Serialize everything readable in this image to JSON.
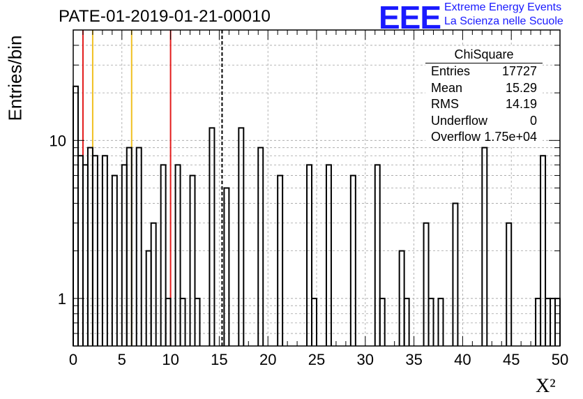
{
  "header": {
    "run_title": "PATE-01-2019-01-21-00010",
    "logo_text": "EEE",
    "org_line1": "Extreme Energy Events",
    "org_line2": "La Scienza nelle Scuole"
  },
  "stats_box": {
    "title": "ChiSquare",
    "rows": [
      {
        "label": "Entries",
        "value": "17727"
      },
      {
        "label": "Mean",
        "value": "15.29"
      },
      {
        "label": "RMS",
        "value": "14.19"
      },
      {
        "label": "Underflow",
        "value": "0"
      },
      {
        "label": "Overflow",
        "value": "1.75e+04"
      }
    ]
  },
  "chart_data": {
    "type": "histogram",
    "title": "PATE-01-2019-01-21-00010",
    "xlabel": "X²",
    "ylabel": "Entries/bin",
    "x_scale": "linear",
    "y_scale": "log",
    "xlim": [
      0,
      50
    ],
    "ylim": [
      0.5,
      50
    ],
    "grid": true,
    "bin_width": 0.5,
    "x_ticks": [
      0,
      5,
      10,
      15,
      20,
      25,
      30,
      35,
      40,
      45,
      50
    ],
    "x_tick_labels": [
      "0",
      "5",
      "10",
      "15",
      "20",
      "25",
      "30",
      "35",
      "40",
      "45",
      "50"
    ],
    "y_ticks": [
      1,
      10
    ],
    "y_tick_labels": [
      "1",
      "10"
    ],
    "bins": [
      {
        "x0": 0.0,
        "count": 22
      },
      {
        "x0": 0.5,
        "count": 8
      },
      {
        "x0": 1.0,
        "count": 7
      },
      {
        "x0": 1.5,
        "count": 9
      },
      {
        "x0": 2.0,
        "count": 8
      },
      {
        "x0": 3.0,
        "count": 8
      },
      {
        "x0": 4.0,
        "count": 6
      },
      {
        "x0": 5.0,
        "count": 7
      },
      {
        "x0": 5.5,
        "count": 9
      },
      {
        "x0": 6.5,
        "count": 9
      },
      {
        "x0": 7.5,
        "count": 2
      },
      {
        "x0": 8.0,
        "count": 3
      },
      {
        "x0": 9.0,
        "count": 7
      },
      {
        "x0": 9.5,
        "count": 1
      },
      {
        "x0": 10.5,
        "count": 7
      },
      {
        "x0": 11.0,
        "count": 1
      },
      {
        "x0": 12.0,
        "count": 6
      },
      {
        "x0": 12.5,
        "count": 1
      },
      {
        "x0": 14.0,
        "count": 12
      },
      {
        "x0": 15.5,
        "count": 5
      },
      {
        "x0": 17.0,
        "count": 12
      },
      {
        "x0": 19.0,
        "count": 9
      },
      {
        "x0": 21.0,
        "count": 6
      },
      {
        "x0": 24.0,
        "count": 7
      },
      {
        "x0": 24.5,
        "count": 1
      },
      {
        "x0": 26.0,
        "count": 7
      },
      {
        "x0": 28.5,
        "count": 6
      },
      {
        "x0": 31.0,
        "count": 7
      },
      {
        "x0": 31.5,
        "count": 1
      },
      {
        "x0": 33.5,
        "count": 2
      },
      {
        "x0": 34.0,
        "count": 1
      },
      {
        "x0": 36.0,
        "count": 3
      },
      {
        "x0": 36.5,
        "count": 1
      },
      {
        "x0": 37.5,
        "count": 1
      },
      {
        "x0": 39.0,
        "count": 4
      },
      {
        "x0": 42.0,
        "count": 9
      },
      {
        "x0": 44.5,
        "count": 3
      },
      {
        "x0": 47.5,
        "count": 1
      },
      {
        "x0": 48.0,
        "count": 8
      },
      {
        "x0": 48.5,
        "count": 1
      },
      {
        "x0": 49.0,
        "count": 1
      },
      {
        "x0": 49.5,
        "count": 1
      }
    ],
    "reference_lines": [
      {
        "x": 1,
        "color": "#e31a1a",
        "style": "solid"
      },
      {
        "x": 2,
        "color": "#f0c020",
        "style": "solid"
      },
      {
        "x": 6,
        "color": "#f0c020",
        "style": "solid"
      },
      {
        "x": 10,
        "color": "#e31a1a",
        "style": "solid"
      },
      {
        "x": 15.29,
        "color": "#000000",
        "style": "dashed"
      }
    ]
  },
  "colors": {
    "logo": "#1a1aff",
    "histogram_line": "#000000",
    "grid": "#a0a0a0"
  }
}
